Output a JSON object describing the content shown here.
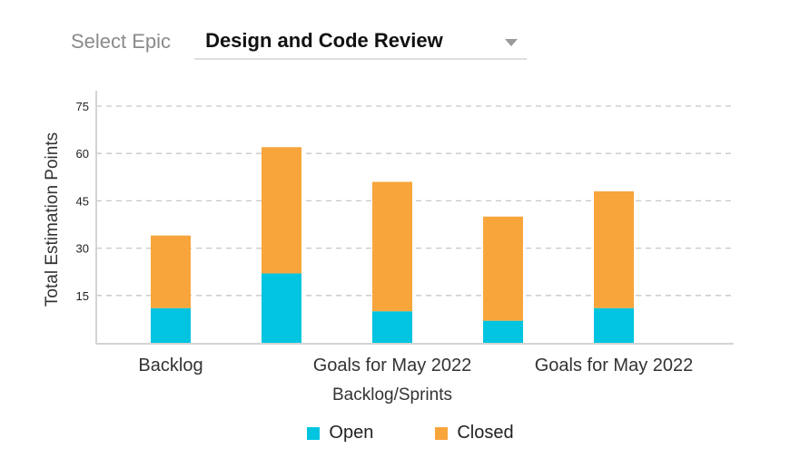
{
  "epic_selector": {
    "label": "Select Epic",
    "value": "Design and Code Review",
    "icon": "chevron-down-icon"
  },
  "colors": {
    "open": "#00c4e0",
    "closed": "#f8a53c",
    "grid": "#c8c8c8",
    "axis": "#d4d4d4"
  },
  "chart_data": {
    "type": "bar",
    "stacked": true,
    "categories": [
      "Backlog",
      "",
      "Goals for May 2022",
      "",
      "Goals for May 2022"
    ],
    "series": [
      {
        "name": "Open",
        "values": [
          11,
          22,
          10,
          7,
          11
        ]
      },
      {
        "name": "Closed",
        "values": [
          23,
          40,
          41,
          33,
          37
        ]
      }
    ],
    "xlabel": "Backlog/Sprints",
    "ylabel": "Total Estimation Points",
    "ylim": [
      0,
      75
    ],
    "yticks": [
      15,
      30,
      45,
      60,
      75
    ],
    "grid": true,
    "legend": "bottom-center"
  }
}
